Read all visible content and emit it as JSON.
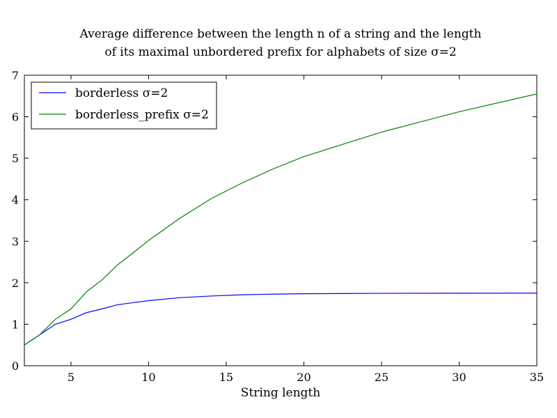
{
  "chart_data": {
    "type": "line",
    "title": [
      "Average difference between the length n of a string and the length",
      "of its maximal unbordered prefix for alphabets of size σ=2"
    ],
    "xlabel": "String length",
    "ylabel": "",
    "xlim": [
      2,
      35
    ],
    "ylim": [
      0,
      7
    ],
    "xticks": [
      5,
      10,
      15,
      20,
      25,
      30,
      35
    ],
    "yticks": [
      0,
      1,
      2,
      3,
      4,
      5,
      6,
      7
    ],
    "grid": false,
    "legend_position": "top-left",
    "series": [
      {
        "name": "borderless σ=2",
        "color": "#0000ff",
        "x": [
          2,
          3,
          4,
          5,
          6,
          7,
          8,
          9,
          10,
          12,
          14,
          16,
          18,
          20,
          25,
          30,
          35
        ],
        "y": [
          0.5,
          0.75,
          1.0,
          1.12,
          1.28,
          1.37,
          1.47,
          1.52,
          1.57,
          1.64,
          1.68,
          1.71,
          1.725,
          1.735,
          1.745,
          1.748,
          1.75
        ]
      },
      {
        "name": "borderless_prefix σ=2",
        "color": "#008000",
        "x": [
          2,
          3,
          4,
          5,
          6,
          7,
          8,
          9,
          10,
          12,
          14,
          16,
          18,
          20,
          25,
          30,
          35
        ],
        "y": [
          0.5,
          0.75,
          1.12,
          1.37,
          1.78,
          2.07,
          2.43,
          2.72,
          3.02,
          3.55,
          4.02,
          4.4,
          4.74,
          5.04,
          5.63,
          6.12,
          6.55
        ]
      }
    ]
  }
}
